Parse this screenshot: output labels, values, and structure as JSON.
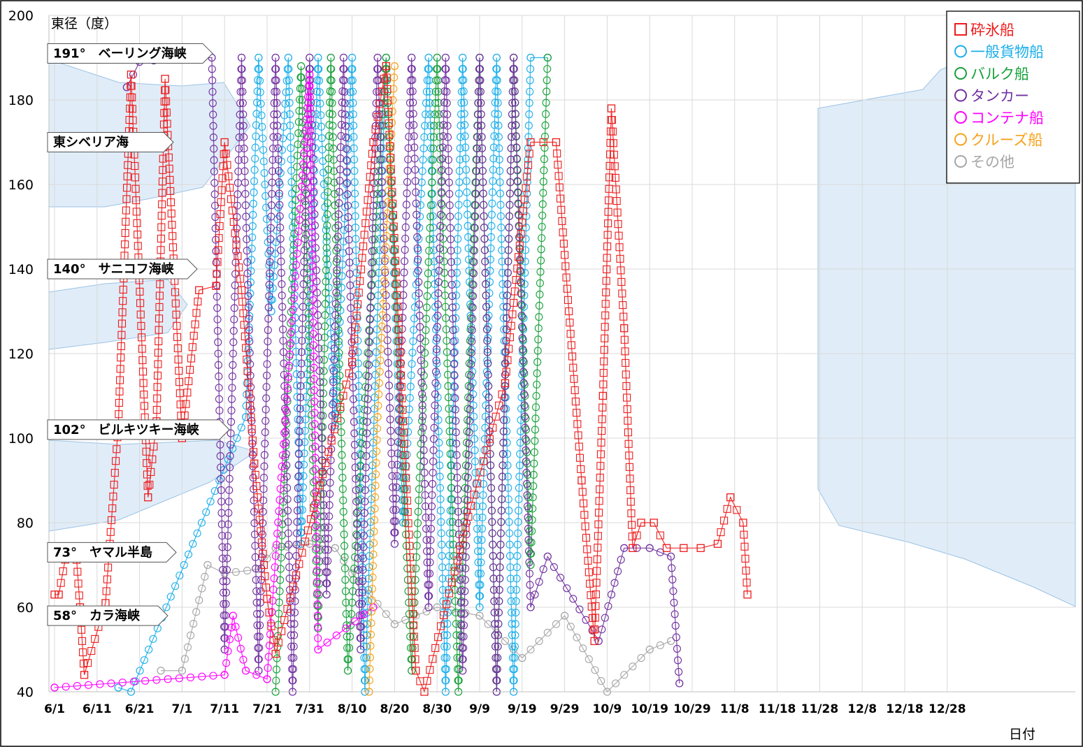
{
  "chart_data": {
    "type": "scatter",
    "title": "",
    "ylabel": "東径（度）",
    "xlabel": "日付",
    "ylim": [
      40,
      200
    ],
    "yticks": [
      40,
      60,
      80,
      100,
      120,
      140,
      160,
      180,
      200
    ],
    "xticks": [
      "6/1",
      "6/11",
      "6/21",
      "7/1",
      "7/11",
      "7/21",
      "7/31",
      "8/10",
      "8/20",
      "8/30",
      "9/9",
      "9/19",
      "9/29",
      "10/9",
      "10/19",
      "10/29",
      "11/8",
      "11/18",
      "11/28",
      "12/8",
      "12/18",
      "12/28"
    ],
    "grid": true,
    "legend_position": "top-right",
    "landmarks": [
      {
        "label": "191°　ベーリング海峡",
        "y": 191
      },
      {
        "label": "東シベリア海",
        "y": 170
      },
      {
        "label": "140°　サニコフ海峡",
        "y": 140
      },
      {
        "label": "102°　ビルキツキー海峡",
        "y": 102
      },
      {
        "label": "73°　ヤマル半島",
        "y": 73
      },
      {
        "label": "58°　カラ海峡",
        "y": 58
      }
    ],
    "series": [
      {
        "name": "砕氷船",
        "marker": "square",
        "color": "#ee1c1c",
        "points": [
          [
            0,
            63
          ],
          [
            1,
            63
          ],
          [
            3,
            74
          ],
          [
            5,
            74
          ],
          [
            6,
            60
          ],
          [
            7,
            44
          ],
          [
            12,
            61
          ],
          [
            15,
            103
          ],
          [
            18,
            186
          ],
          [
            22,
            86
          ],
          [
            24,
            104
          ],
          [
            26,
            185
          ],
          [
            30,
            100
          ],
          [
            34,
            135
          ],
          [
            38,
            136
          ],
          [
            40,
            170
          ],
          [
            44,
            135
          ],
          [
            47,
            94
          ],
          [
            50,
            62
          ],
          [
            52,
            49
          ],
          [
            70,
            118
          ],
          [
            75,
            170
          ],
          [
            78,
            188
          ],
          [
            82,
            104
          ],
          [
            85,
            45
          ],
          [
            87,
            40
          ],
          [
            98,
            84
          ],
          [
            106,
            113
          ],
          [
            112,
            170
          ],
          [
            118,
            170
          ],
          [
            124,
            90
          ],
          [
            127,
            52
          ],
          [
            129,
            110
          ],
          [
            131,
            178
          ],
          [
            134,
            126
          ],
          [
            136,
            74
          ],
          [
            138,
            80
          ],
          [
            141,
            80
          ],
          [
            144,
            74
          ],
          [
            148,
            74
          ],
          [
            152,
            74
          ],
          [
            156,
            75
          ],
          [
            159,
            86
          ],
          [
            162,
            80
          ],
          [
            163,
            63
          ]
        ]
      },
      {
        "name": "一般貨物船",
        "marker": "circle",
        "color": "#1aaeea",
        "points": [
          [
            15,
            41
          ],
          [
            18,
            40
          ],
          [
            45,
            105
          ],
          [
            48,
            190
          ],
          [
            51,
            130
          ],
          [
            55,
            190
          ],
          [
            58,
            75
          ],
          [
            62,
            190
          ],
          [
            66,
            103
          ],
          [
            70,
            190
          ],
          [
            73,
            40
          ],
          [
            78,
            190
          ],
          [
            82,
            80
          ],
          [
            88,
            190
          ],
          [
            92,
            40
          ],
          [
            96,
            190
          ],
          [
            100,
            60
          ],
          [
            104,
            190
          ],
          [
            108,
            40
          ],
          [
            112,
            190
          ],
          [
            116,
            190
          ]
        ]
      },
      {
        "name": "バルク船",
        "marker": "circle",
        "color": "#17a03a",
        "points": [
          [
            52,
            40
          ],
          [
            58,
            188
          ],
          [
            62,
            55
          ],
          [
            65,
            190
          ],
          [
            69,
            45
          ],
          [
            78,
            190
          ],
          [
            84,
            45
          ],
          [
            90,
            190
          ],
          [
            95,
            40
          ],
          [
            100,
            190
          ],
          [
            104,
            40
          ],
          [
            108,
            190
          ],
          [
            112,
            70
          ],
          [
            116,
            190
          ]
        ]
      },
      {
        "name": "タンカー",
        "marker": "circle",
        "color": "#7030a0",
        "points": [
          [
            17,
            183
          ],
          [
            20,
            189
          ],
          [
            30,
            190
          ],
          [
            37,
            190
          ],
          [
            40,
            50
          ],
          [
            44,
            190
          ],
          [
            48,
            45
          ],
          [
            52,
            190
          ],
          [
            56,
            40
          ],
          [
            60,
            190
          ],
          [
            64,
            63
          ],
          [
            68,
            190
          ],
          [
            72,
            50
          ],
          [
            76,
            190
          ],
          [
            80,
            75
          ],
          [
            84,
            190
          ],
          [
            88,
            60
          ],
          [
            92,
            190
          ],
          [
            96,
            45
          ],
          [
            100,
            190
          ],
          [
            104,
            40
          ],
          [
            108,
            190
          ],
          [
            112,
            60
          ],
          [
            116,
            72
          ],
          [
            128,
            52
          ],
          [
            134,
            74
          ],
          [
            140,
            74
          ],
          [
            145,
            72
          ],
          [
            147,
            42
          ]
        ]
      },
      {
        "name": "コンテナ船",
        "marker": "circle",
        "color": "#ff00ff",
        "points": [
          [
            0,
            41
          ],
          [
            40,
            44
          ],
          [
            42,
            58
          ],
          [
            45,
            45
          ],
          [
            50,
            43
          ],
          [
            60,
            186
          ],
          [
            62,
            50
          ],
          [
            75,
            60
          ]
        ]
      },
      {
        "name": "クルーズ船",
        "marker": "circle",
        "color": "#f5a21b",
        "points": [
          [
            74,
            40
          ],
          [
            76,
            105
          ],
          [
            80,
            188
          ]
        ]
      },
      {
        "name": "その他",
        "marker": "circle",
        "color": "#a6a6a6",
        "points": [
          [
            25,
            45
          ],
          [
            30,
            45
          ],
          [
            36,
            70
          ],
          [
            40,
            68
          ],
          [
            48,
            69
          ],
          [
            52,
            74
          ],
          [
            60,
            75
          ],
          [
            66,
            74
          ],
          [
            70,
            68
          ],
          [
            80,
            56
          ],
          [
            90,
            60
          ],
          [
            100,
            58
          ],
          [
            110,
            48
          ],
          [
            120,
            58
          ],
          [
            130,
            40
          ],
          [
            140,
            50
          ],
          [
            145,
            52
          ]
        ]
      }
    ]
  }
}
